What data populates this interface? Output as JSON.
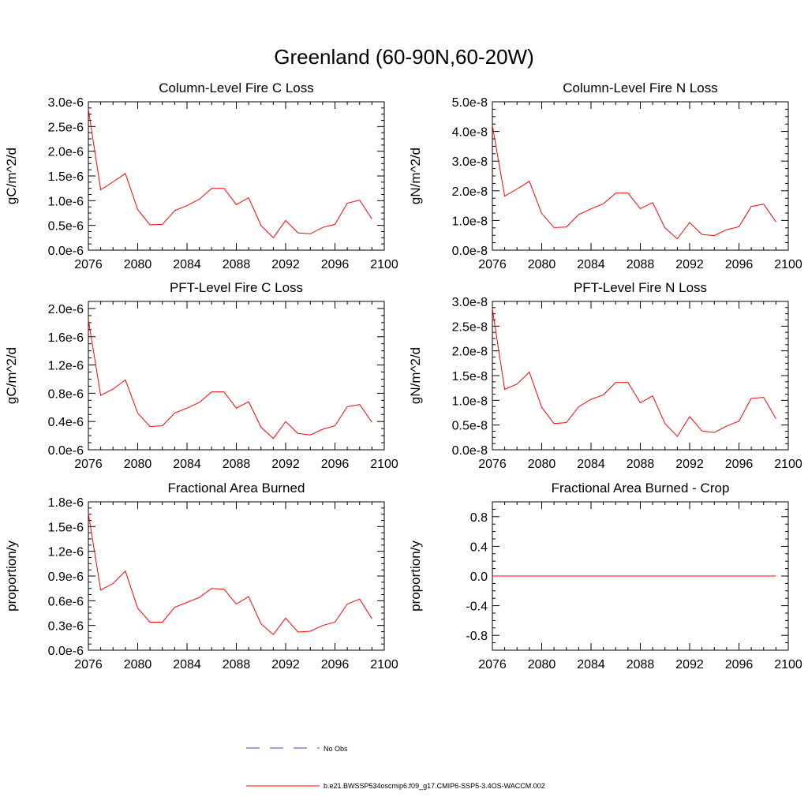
{
  "figure": {
    "title": "Greenland (60-90N,60-20W)",
    "legend": {
      "obs_label": "No Obs",
      "obs_color": "#4a4ab8",
      "model_label": "b.e21.BWSSP534oscmip6.f09_g17.CMIP6-SSP5-3.4OS-WACCM.002",
      "model_color": "#ff0000"
    }
  },
  "chart_data": [
    {
      "type": "line",
      "title": "Column-Level Fire C Loss",
      "ylabel": "gC/m^2/d",
      "xlim": [
        2076,
        2100
      ],
      "ylim": [
        0,
        3e-06
      ],
      "xticks": [
        2076,
        2080,
        2084,
        2088,
        2092,
        2096,
        2100
      ],
      "xtick_labels": [
        "2076",
        "2080",
        "2084",
        "2088",
        "2092",
        "2096",
        "2100"
      ],
      "yticks": [
        0,
        5e-07,
        1e-06,
        1.5e-06,
        2e-06,
        2.5e-06,
        3e-06
      ],
      "ytick_labels": [
        "0.0e-6",
        "0.5e-6",
        "1.0e-6",
        "1.5e-6",
        "2.0e-6",
        "2.5e-6",
        "3.0e-6"
      ],
      "x": [
        2076,
        2077,
        2078,
        2079,
        2080,
        2081,
        2082,
        2083,
        2084,
        2085,
        2086,
        2087,
        2088,
        2089,
        2090,
        2091,
        2092,
        2093,
        2094,
        2095,
        2096,
        2097,
        2098,
        2099
      ],
      "series": [
        {
          "name": "b.e21.BWSSP534oscmip6.f09_g17.CMIP6-SSP5-3.4OS-WACCM.002",
          "values": [
            2.85e-06,
            1.22e-06,
            1.38e-06,
            1.55e-06,
            8.2e-07,
            5.1e-07,
            5.2e-07,
            8e-07,
            9e-07,
            1.03e-06,
            1.25e-06,
            1.25e-06,
            9.2e-07,
            1.06e-06,
            5e-07,
            2.5e-07,
            6e-07,
            3.5e-07,
            3.3e-07,
            4.6e-07,
            5.2e-07,
            9.5e-07,
            1.01e-06,
            6.3e-07
          ]
        }
      ]
    },
    {
      "type": "line",
      "title": "Column-Level Fire N Loss",
      "ylabel": "gN/m^2/d",
      "xlim": [
        2076,
        2100
      ],
      "ylim": [
        0,
        5e-08
      ],
      "xticks": [
        2076,
        2080,
        2084,
        2088,
        2092,
        2096,
        2100
      ],
      "xtick_labels": [
        "2076",
        "2080",
        "2084",
        "2088",
        "2092",
        "2096",
        "2100"
      ],
      "yticks": [
        0,
        1e-08,
        2e-08,
        3e-08,
        4e-08,
        5e-08
      ],
      "ytick_labels": [
        "0.0e-8",
        "1.0e-8",
        "2.0e-8",
        "3.0e-8",
        "4.0e-8",
        "5.0e-8"
      ],
      "x": [
        2076,
        2077,
        2078,
        2079,
        2080,
        2081,
        2082,
        2083,
        2084,
        2085,
        2086,
        2087,
        2088,
        2089,
        2090,
        2091,
        2092,
        2093,
        2094,
        2095,
        2096,
        2097,
        2098,
        2099
      ],
      "series": [
        {
          "name": "b.e21.BWSSP534oscmip6.f09_g17.CMIP6-SSP5-3.4OS-WACCM.002",
          "values": [
            4.2e-08,
            1.82e-08,
            2.06e-08,
            2.32e-08,
            1.24e-08,
            7.6e-09,
            7.8e-09,
            1.2e-08,
            1.39e-08,
            1.56e-08,
            1.92e-08,
            1.92e-08,
            1.4e-08,
            1.6e-08,
            7.5e-09,
            3.8e-09,
            9.3e-09,
            5.3e-09,
            4.9e-09,
            6.9e-09,
            7.9e-09,
            1.47e-08,
            1.55e-08,
            9.5e-09
          ]
        }
      ]
    },
    {
      "type": "line",
      "title": "PFT-Level Fire C Loss",
      "ylabel": "gC/m^2/d",
      "xlim": [
        2076,
        2100
      ],
      "ylim": [
        0,
        2.1e-06
      ],
      "xticks": [
        2076,
        2080,
        2084,
        2088,
        2092,
        2096,
        2100
      ],
      "xtick_labels": [
        "2076",
        "2080",
        "2084",
        "2088",
        "2092",
        "2096",
        "2100"
      ],
      "yticks": [
        0,
        4e-07,
        8e-07,
        1.2e-06,
        1.6e-06,
        2e-06
      ],
      "ytick_labels": [
        "0.0e-6",
        "0.4e-6",
        "0.8e-6",
        "1.2e-6",
        "1.6e-6",
        "2.0e-6"
      ],
      "x": [
        2076,
        2077,
        2078,
        2079,
        2080,
        2081,
        2082,
        2083,
        2084,
        2085,
        2086,
        2087,
        2088,
        2089,
        2090,
        2091,
        2092,
        2093,
        2094,
        2095,
        2096,
        2097,
        2098,
        2099
      ],
      "series": [
        {
          "name": "b.e21.BWSSP534oscmip6.f09_g17.CMIP6-SSP5-3.4OS-WACCM.002",
          "values": [
            1.84e-06,
            7.7e-07,
            8.6e-07,
            9.9e-07,
            5.2e-07,
            3.3e-07,
            3.4e-07,
            5.2e-07,
            5.9e-07,
            6.7e-07,
            8.2e-07,
            8.2e-07,
            5.9e-07,
            6.8e-07,
            3.2e-07,
            1.6e-07,
            4e-07,
            2.3e-07,
            2.1e-07,
            2.9e-07,
            3.4e-07,
            6.1e-07,
            6.4e-07,
            3.9e-07
          ]
        }
      ]
    },
    {
      "type": "line",
      "title": "PFT-Level Fire N Loss",
      "ylabel": "gN/m^2/d",
      "xlim": [
        2076,
        2100
      ],
      "ylim": [
        0,
        3e-08
      ],
      "xticks": [
        2076,
        2080,
        2084,
        2088,
        2092,
        2096,
        2100
      ],
      "xtick_labels": [
        "2076",
        "2080",
        "2084",
        "2088",
        "2092",
        "2096",
        "2100"
      ],
      "yticks": [
        0,
        5e-09,
        1e-08,
        1.5e-08,
        2e-08,
        2.5e-08,
        3e-08
      ],
      "ytick_labels": [
        "0.0e-8",
        "0.5e-8",
        "1.0e-8",
        "1.5e-8",
        "2.0e-8",
        "2.5e-8",
        "3.0e-8"
      ],
      "x": [
        2076,
        2077,
        2078,
        2079,
        2080,
        2081,
        2082,
        2083,
        2084,
        2085,
        2086,
        2087,
        2088,
        2089,
        2090,
        2091,
        2092,
        2093,
        2094,
        2095,
        2096,
        2097,
        2098,
        2099
      ],
      "series": [
        {
          "name": "b.e21.BWSSP534oscmip6.f09_g17.CMIP6-SSP5-3.4OS-WACCM.002",
          "values": [
            2.85e-08,
            1.22e-08,
            1.33e-08,
            1.57e-08,
            8.6e-09,
            5.3e-09,
            5.5e-09,
            8.7e-09,
            1.02e-08,
            1.11e-08,
            1.36e-08,
            1.36e-08,
            9.5e-09,
            1.09e-08,
            5.3e-09,
            2.7e-09,
            6.7e-09,
            3.8e-09,
            3.5e-09,
            4.8e-09,
            5.8e-09,
            1.04e-08,
            1.06e-08,
            6.3e-09
          ]
        }
      ]
    },
    {
      "type": "line",
      "title": "Fractional Area Burned",
      "ylabel": "proportion/y",
      "xlim": [
        2076,
        2100
      ],
      "ylim": [
        0,
        1.8e-06
      ],
      "xticks": [
        2076,
        2080,
        2084,
        2088,
        2092,
        2096,
        2100
      ],
      "xtick_labels": [
        "2076",
        "2080",
        "2084",
        "2088",
        "2092",
        "2096",
        "2100"
      ],
      "yticks": [
        0,
        3e-07,
        6e-07,
        9e-07,
        1.2e-06,
        1.5e-06,
        1.8e-06
      ],
      "ytick_labels": [
        "0.0e-6",
        "0.3e-6",
        "0.6e-6",
        "0.9e-6",
        "1.2e-6",
        "1.5e-6",
        "1.8e-6"
      ],
      "x": [
        2076,
        2077,
        2078,
        2079,
        2080,
        2081,
        2082,
        2083,
        2084,
        2085,
        2086,
        2087,
        2088,
        2089,
        2090,
        2091,
        2092,
        2093,
        2094,
        2095,
        2096,
        2097,
        2098,
        2099
      ],
      "series": [
        {
          "name": "b.e21.BWSSP534oscmip6.f09_g17.CMIP6-SSP5-3.4OS-WACCM.002",
          "values": [
            1.66e-06,
            7.3e-07,
            8.1e-07,
            9.6e-07,
            5.1e-07,
            3.4e-07,
            3.4e-07,
            5.2e-07,
            5.8e-07,
            6.4e-07,
            7.5e-07,
            7.4e-07,
            5.6e-07,
            6.5e-07,
            3.2e-07,
            1.9e-07,
            3.9e-07,
            2.2e-07,
            2.3e-07,
            3e-07,
            3.4e-07,
            5.6e-07,
            6.2e-07,
            3.8e-07
          ]
        }
      ]
    },
    {
      "type": "line",
      "title": "Fractional Area Burned - Crop",
      "ylabel": "proportion/y",
      "xlim": [
        2076,
        2100
      ],
      "ylim": [
        -1.0,
        1.0
      ],
      "xticks": [
        2076,
        2080,
        2084,
        2088,
        2092,
        2096,
        2100
      ],
      "xtick_labels": [
        "2076",
        "2080",
        "2084",
        "2088",
        "2092",
        "2096",
        "2100"
      ],
      "yticks": [
        -0.8,
        -0.4,
        0,
        0.4,
        0.8
      ],
      "ytick_labels": [
        "-0.8",
        "-0.4",
        "0.0",
        "0.4",
        "0.8"
      ],
      "x": [
        2076,
        2077,
        2078,
        2079,
        2080,
        2081,
        2082,
        2083,
        2084,
        2085,
        2086,
        2087,
        2088,
        2089,
        2090,
        2091,
        2092,
        2093,
        2094,
        2095,
        2096,
        2097,
        2098,
        2099
      ],
      "series": [
        {
          "name": "b.e21.BWSSP534oscmip6.f09_g17.CMIP6-SSP5-3.4OS-WACCM.002",
          "values": [
            0,
            0,
            0,
            0,
            0,
            0,
            0,
            0,
            0,
            0,
            0,
            0,
            0,
            0,
            0,
            0,
            0,
            0,
            0,
            0,
            0,
            0,
            0,
            0
          ]
        }
      ]
    }
  ]
}
